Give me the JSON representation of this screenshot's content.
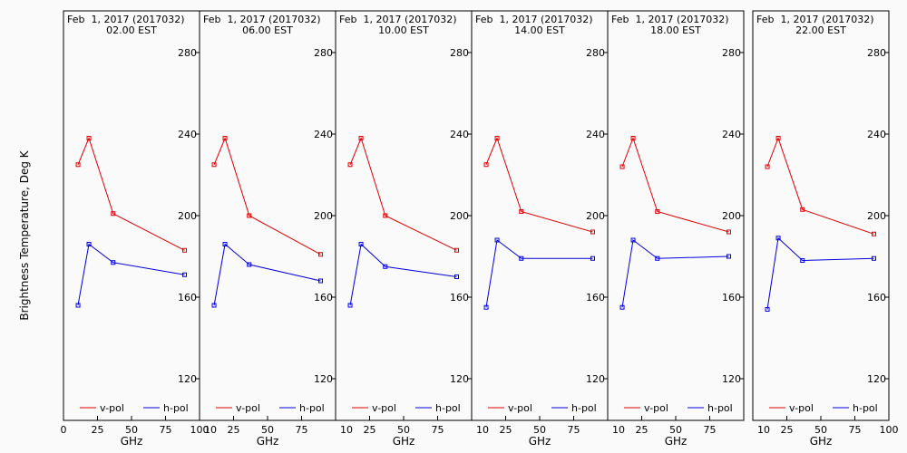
{
  "figure": {
    "ylabel": "Brightness Temperature, Deg K",
    "xlabel": "GHz"
  },
  "chart_data": [
    {
      "type": "line",
      "title": "Feb  1, 2017 (2017032)",
      "subtitle": "02.00 EST",
      "xlabel": "GHz",
      "ylabel": "Brightness Temperature, Deg K",
      "xlim": [
        0,
        100
      ],
      "ylim": [
        100,
        295
      ],
      "x": [
        10.7,
        18.7,
        36.5,
        89.0
      ],
      "series": [
        {
          "name": "v-pol",
          "color": "#dd0000",
          "values": [
            225,
            238,
            201,
            183
          ]
        },
        {
          "name": "h-pol",
          "color": "#0000dd",
          "values": [
            156,
            186,
            177,
            171
          ]
        }
      ],
      "x_ticks": [
        "0",
        "25",
        "50",
        "75",
        "100"
      ],
      "y_ticks": [
        "120",
        "160",
        "200",
        "240",
        "280"
      ]
    },
    {
      "type": "line",
      "title": "Feb  1, 2017 (2017032)",
      "subtitle": "06.00 EST",
      "xlabel": "GHz",
      "ylabel": "Brightness Temperature, Deg K",
      "xlim": [
        0,
        100
      ],
      "ylim": [
        100,
        295
      ],
      "x": [
        10.7,
        18.7,
        36.5,
        89.0
      ],
      "series": [
        {
          "name": "v-pol",
          "color": "#dd0000",
          "values": [
            225,
            238,
            200,
            181
          ]
        },
        {
          "name": "h-pol",
          "color": "#0000dd",
          "values": [
            156,
            186,
            176,
            168
          ]
        }
      ],
      "x_ticks": [
        "10",
        "25",
        "50",
        "75",
        "100"
      ],
      "y_ticks": [
        "120",
        "160",
        "200",
        "240",
        "280"
      ]
    },
    {
      "type": "line",
      "title": "Feb  1, 2017 (2017032)",
      "subtitle": "10.00 EST",
      "xlabel": "GHz",
      "ylabel": "Brightness Temperature, Deg K",
      "xlim": [
        0,
        100
      ],
      "ylim": [
        100,
        295
      ],
      "x": [
        10.7,
        18.7,
        36.5,
        89.0
      ],
      "series": [
        {
          "name": "v-pol",
          "color": "#dd0000",
          "values": [
            225,
            238,
            200,
            183
          ]
        },
        {
          "name": "h-pol",
          "color": "#0000dd",
          "values": [
            156,
            186,
            175,
            170
          ]
        }
      ],
      "x_ticks": [
        "10",
        "25",
        "50",
        "75",
        "100"
      ],
      "y_ticks": [
        "120",
        "160",
        "200",
        "240",
        "280"
      ]
    },
    {
      "type": "line",
      "title": "Feb  1, 2017 (2017032)",
      "subtitle": "14.00 EST",
      "xlabel": "GHz",
      "ylabel": "Brightness Temperature, Deg K",
      "xlim": [
        0,
        100
      ],
      "ylim": [
        100,
        295
      ],
      "x": [
        10.7,
        18.7,
        36.5,
        89.0
      ],
      "series": [
        {
          "name": "v-pol",
          "color": "#dd0000",
          "values": [
            225,
            238,
            202,
            192
          ]
        },
        {
          "name": "h-pol",
          "color": "#0000dd",
          "values": [
            155,
            188,
            179,
            179
          ]
        }
      ],
      "x_ticks": [
        "10",
        "25",
        "50",
        "75",
        "100"
      ],
      "y_ticks": [
        "120",
        "160",
        "200",
        "240",
        "280"
      ]
    },
    {
      "type": "line",
      "title": "Feb  1, 2017 (2017032)",
      "subtitle": "18.00 EST",
      "xlabel": "GHz",
      "ylabel": "Brightness Temperature, Deg K",
      "xlim": [
        0,
        100
      ],
      "ylim": [
        100,
        295
      ],
      "x": [
        10.7,
        18.7,
        36.5,
        89.0
      ],
      "series": [
        {
          "name": "v-pol",
          "color": "#dd0000",
          "values": [
            224,
            238,
            202,
            192
          ]
        },
        {
          "name": "h-pol",
          "color": "#0000dd",
          "values": [
            155,
            188,
            179,
            180
          ]
        }
      ],
      "x_ticks": [
        "10",
        "25",
        "50",
        "75",
        "100"
      ],
      "y_ticks": [
        "120",
        "160",
        "200",
        "240",
        "280"
      ]
    },
    {
      "type": "line",
      "title": "Feb  1, 2017 (2017032)",
      "subtitle": "22.00 EST",
      "xlabel": "GHz",
      "ylabel": "Brightness Temperature, Deg K",
      "xlim": [
        0,
        100
      ],
      "ylim": [
        100,
        295
      ],
      "x": [
        10.7,
        18.7,
        36.5,
        89.0
      ],
      "series": [
        {
          "name": "v-pol",
          "color": "#dd0000",
          "values": [
            224,
            238,
            203,
            191
          ]
        },
        {
          "name": "h-pol",
          "color": "#0000dd",
          "values": [
            154,
            189,
            178,
            179
          ]
        }
      ],
      "x_ticks": [
        "10",
        "25",
        "50",
        "75",
        "100"
      ],
      "y_ticks": [
        "120",
        "160",
        "200",
        "240",
        "280"
      ]
    }
  ]
}
